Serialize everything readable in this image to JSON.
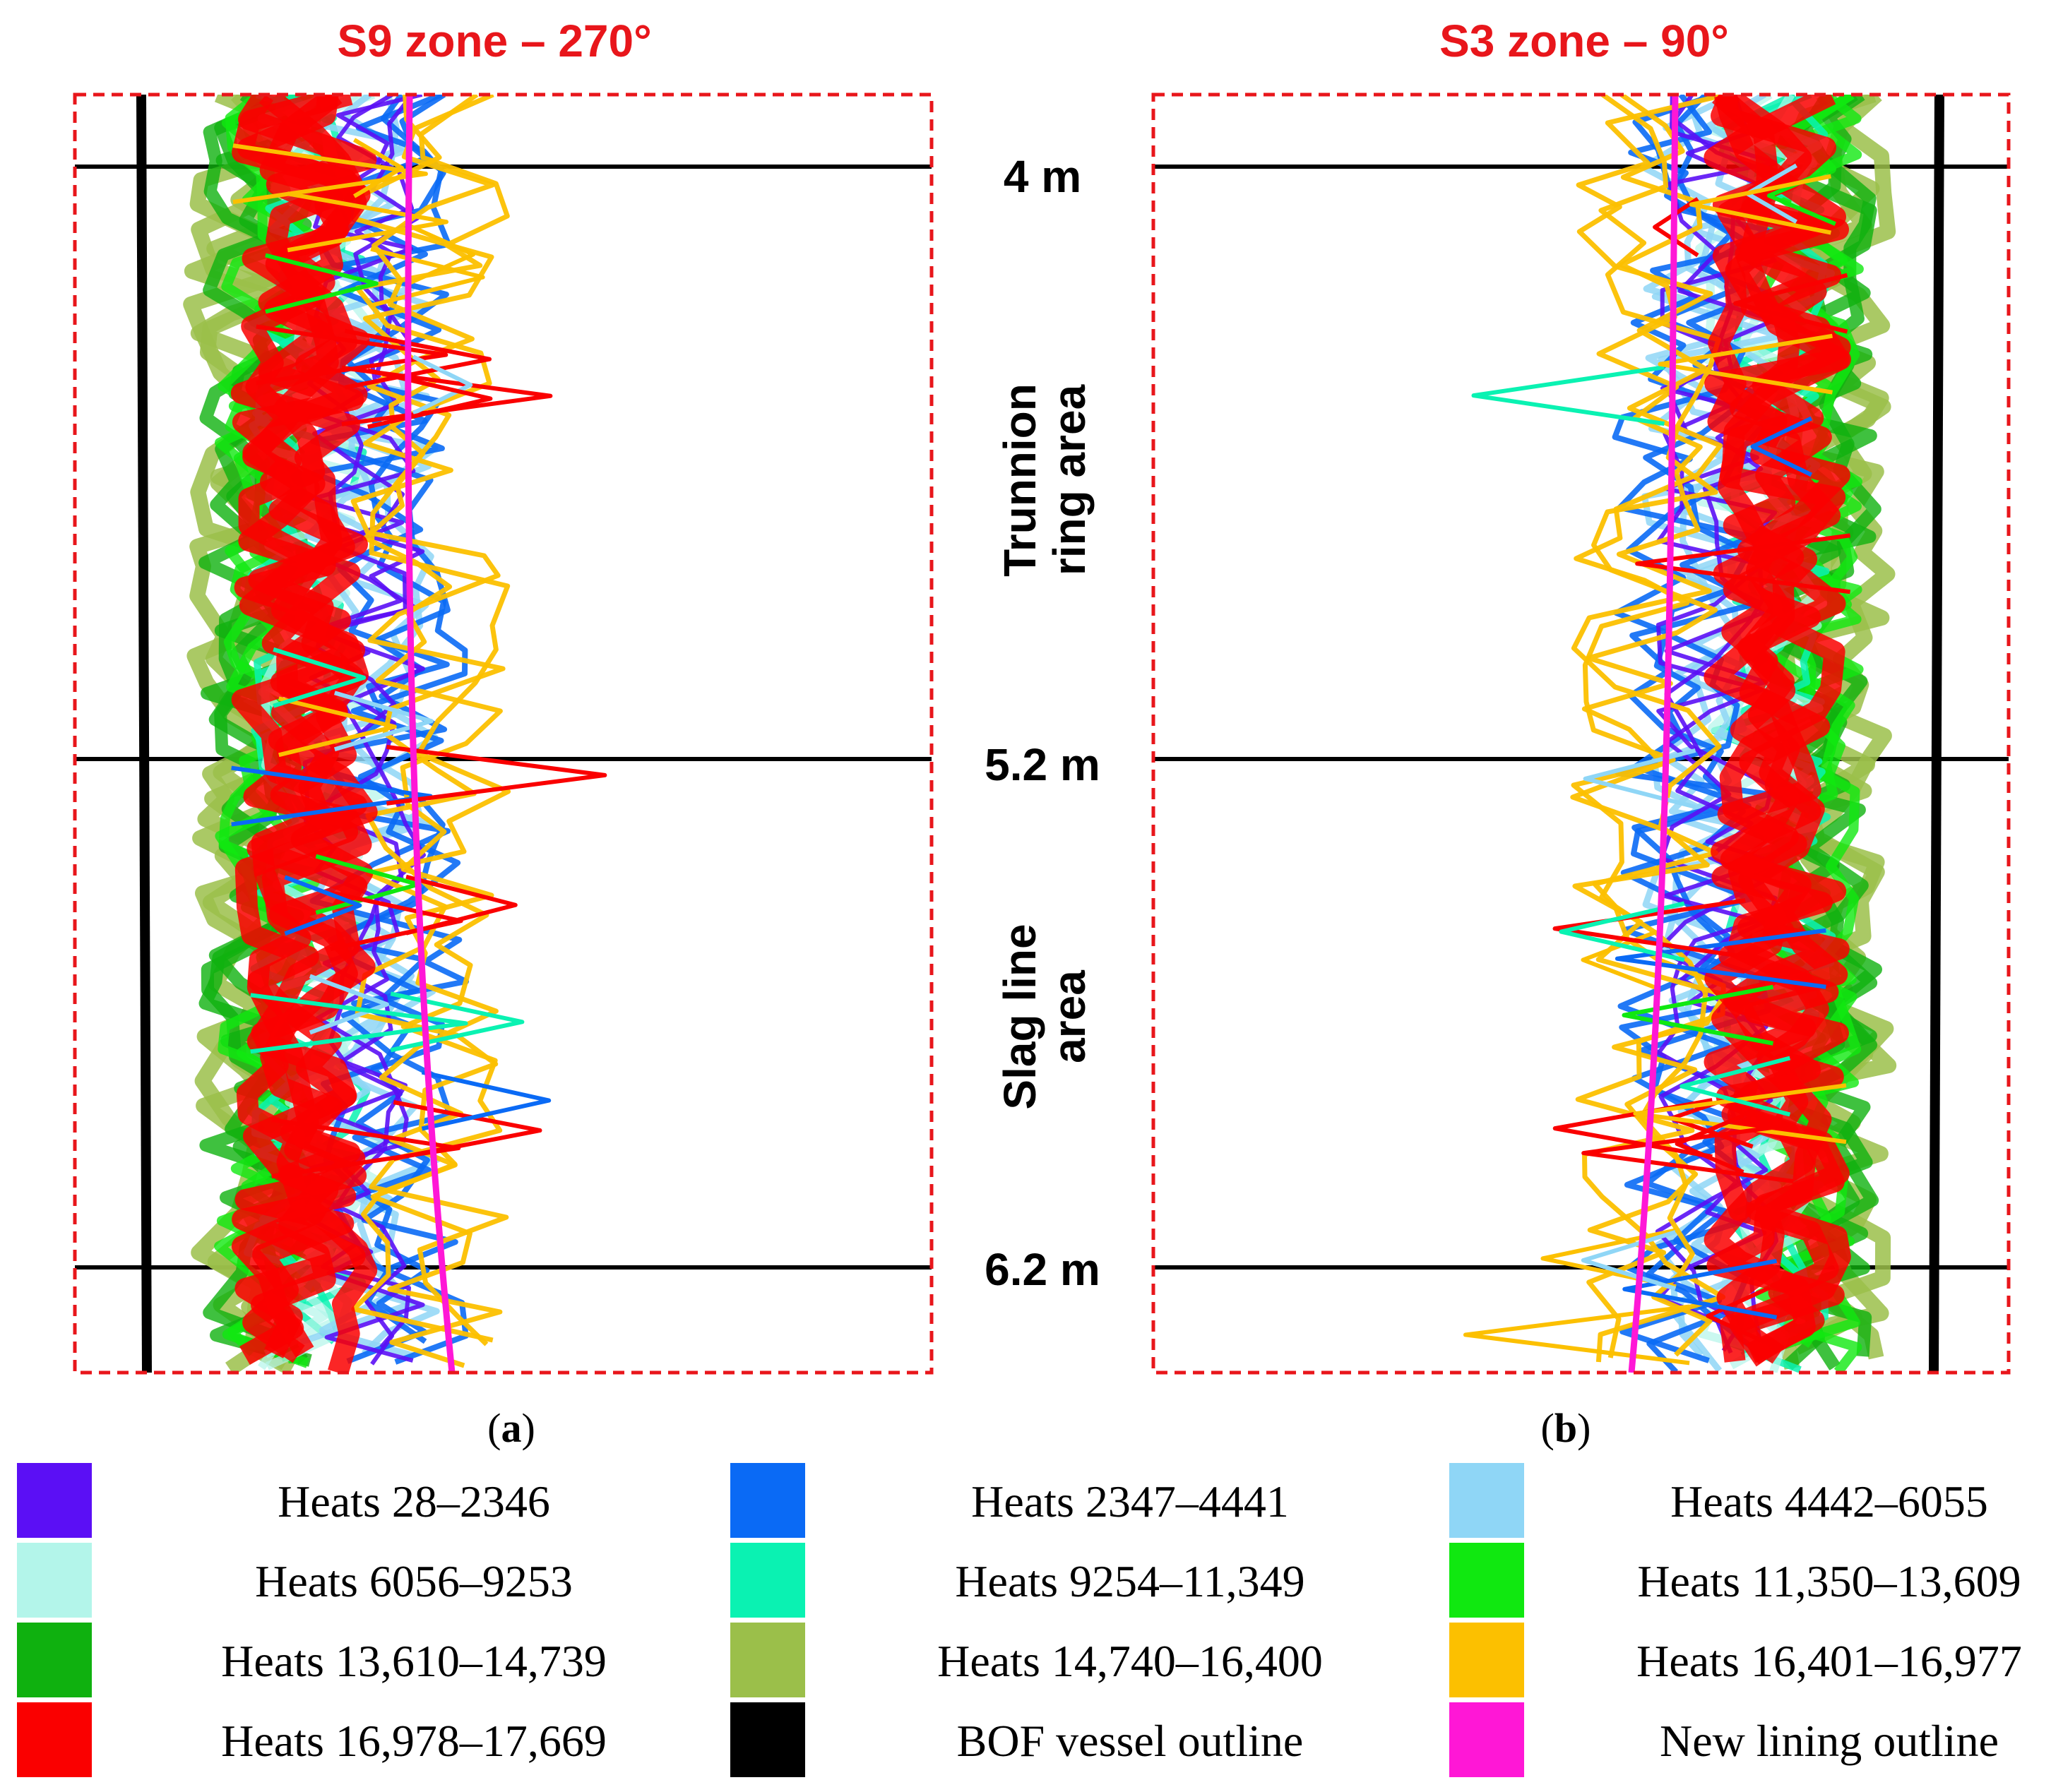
{
  "chart_data": {
    "type": "line",
    "description_units": "depth in metres",
    "panels": [
      {
        "id": "a",
        "title": "S9 zone – 270°",
        "sub_label_open": "(",
        "sub_label_letter": "a",
        "sub_label_close": ")",
        "vessel_side": "left"
      },
      {
        "id": "b",
        "title": "S3 zone – 90°",
        "sub_label_open": "(",
        "sub_label_letter": "b",
        "sub_label_close": ")",
        "vessel_side": "right"
      }
    ],
    "depth_marks": [
      {
        "label": "4 m",
        "value": 4.0
      },
      {
        "label": "5.2 m",
        "value": 5.2
      },
      {
        "label": "6.2 m",
        "value": 6.2
      }
    ],
    "areas": [
      {
        "lines": [
          "Trunnion",
          "ring area"
        ]
      },
      {
        "lines": [
          "Slag line",
          "area"
        ]
      }
    ],
    "legend": [
      {
        "label": "Heats 28–2346",
        "color": "#5b0ff5"
      },
      {
        "label": "Heats 2347–4441",
        "color": "#0a6af5"
      },
      {
        "label": "Heats 4442–6055",
        "color": "#8fd6f6"
      },
      {
        "label": "Heats 6056–9253",
        "color": "#b3f5ea"
      },
      {
        "label": "Heats 9254–11,349",
        "color": "#0af2b2"
      },
      {
        "label": "Heats 11,350–13,609",
        "color": "#10e810"
      },
      {
        "label": "Heats 13,610–14,739",
        "color": "#0fb10f"
      },
      {
        "label": "Heats 14,740–16,400",
        "color": "#9bbf4a"
      },
      {
        "label": "Heats 16,401–16,977",
        "color": "#fcc000"
      },
      {
        "label": "Heats 16,978–17,669",
        "color": "#fa0000"
      },
      {
        "label": "BOF vessel outline",
        "color": "#000000"
      },
      {
        "label": "New lining outline",
        "color": "#ff17d6"
      }
    ]
  }
}
